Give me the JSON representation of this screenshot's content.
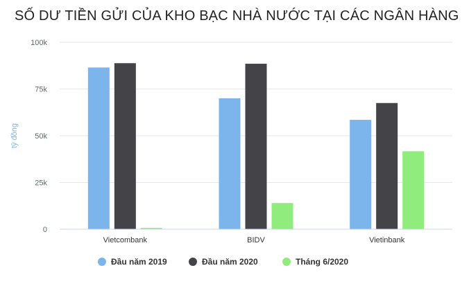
{
  "chart_data": {
    "type": "bar",
    "title": "SỐ DƯ TIỀN GỬI CỦA KHO BẠC NHÀ NƯỚC TẠI CÁC NGÂN HÀNG",
    "ylabel": "tỷ đồng",
    "xlabel": "",
    "ylim": [
      0,
      100000
    ],
    "yticks": [
      0,
      25000,
      50000,
      75000,
      100000
    ],
    "ytick_labels": [
      "0",
      "25k",
      "50k",
      "75k",
      "100k"
    ],
    "categories": [
      "Vietcombank",
      "BIDV",
      "Vietinbank"
    ],
    "grid": true,
    "legend_position": "bottom",
    "series": [
      {
        "name": "Đầu năm 2019",
        "color": "#7cb5ec",
        "values": [
          86500,
          70000,
          58500
        ]
      },
      {
        "name": "Đầu năm 2020",
        "color": "#434348",
        "values": [
          88800,
          88500,
          67500
        ]
      },
      {
        "name": "Tháng 6/2020",
        "color": "#90ed7d",
        "values": [
          700,
          14000,
          41700
        ]
      }
    ]
  }
}
